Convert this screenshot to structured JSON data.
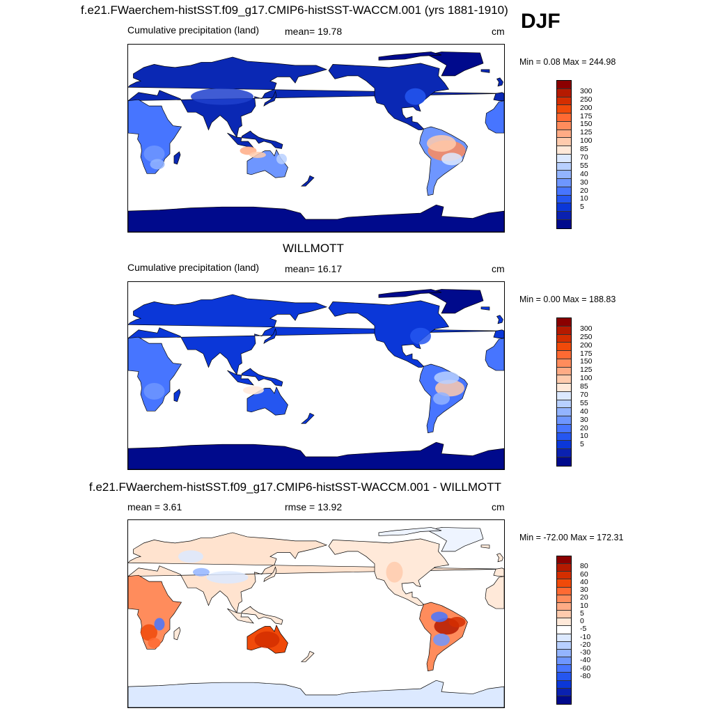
{
  "header": {
    "case_title": "f.e21.FWaerchem-histSST.f09_g17.CMIP6-histSST-WACCM.001 (yrs 1881-1910)",
    "season": "DJF"
  },
  "panels": [
    {
      "title": "",
      "left_label": "Cumulative precipitation (land)",
      "mid_label": "mean=  19.78",
      "units": "cm",
      "minmax": "Min =   0.08 Max = 244.98",
      "map_style": "model"
    },
    {
      "title": "WILLMOTT",
      "left_label": "Cumulative precipitation (land)",
      "mid_label": "mean=  16.17",
      "units": "cm",
      "minmax": "Min =   0.00 Max = 188.83",
      "map_style": "obs"
    },
    {
      "title": "f.e21.FWaerchem-histSST.f09_g17.CMIP6-histSST-WACCM.001 - WILLMOTT",
      "left_label": "mean =   3.61",
      "mid_label": "rmse =  13.92",
      "units": "cm",
      "minmax": "Min = -72.00 Max = 172.31",
      "map_style": "diff"
    }
  ],
  "colorbars": {
    "precip": {
      "colors": [
        "#8b0000",
        "#b51a00",
        "#d42e00",
        "#f04a0a",
        "#ff6a33",
        "#ff8c5c",
        "#ffab85",
        "#ffcbad",
        "#ffe9d9",
        "#dce9ff",
        "#b8d0ff",
        "#93b4ff",
        "#6e96ff",
        "#4775ff",
        "#2556f0",
        "#0b37d8",
        "#0a21b0",
        "#000a8c"
      ],
      "labels": [
        "300",
        "250",
        "200",
        "175",
        "150",
        "125",
        "100",
        "85",
        "70",
        "55",
        "40",
        "30",
        "20",
        "10",
        "5"
      ]
    },
    "diff": {
      "colors": [
        "#8b0000",
        "#b51a00",
        "#d42e00",
        "#f04a0a",
        "#ff6a33",
        "#ff8c5c",
        "#ffab85",
        "#ffcbad",
        "#ffe9d9",
        "#ffffff",
        "#dce9ff",
        "#b8d0ff",
        "#93b4ff",
        "#6e96ff",
        "#4775ff",
        "#2556f0",
        "#0b37d8",
        "#0a21b0",
        "#000a8c"
      ],
      "labels": [
        "80",
        "60",
        "40",
        "30",
        "20",
        "10",
        "5",
        "0",
        "-5",
        "-10",
        "-20",
        "-30",
        "-40",
        "-60",
        "-80"
      ]
    }
  }
}
